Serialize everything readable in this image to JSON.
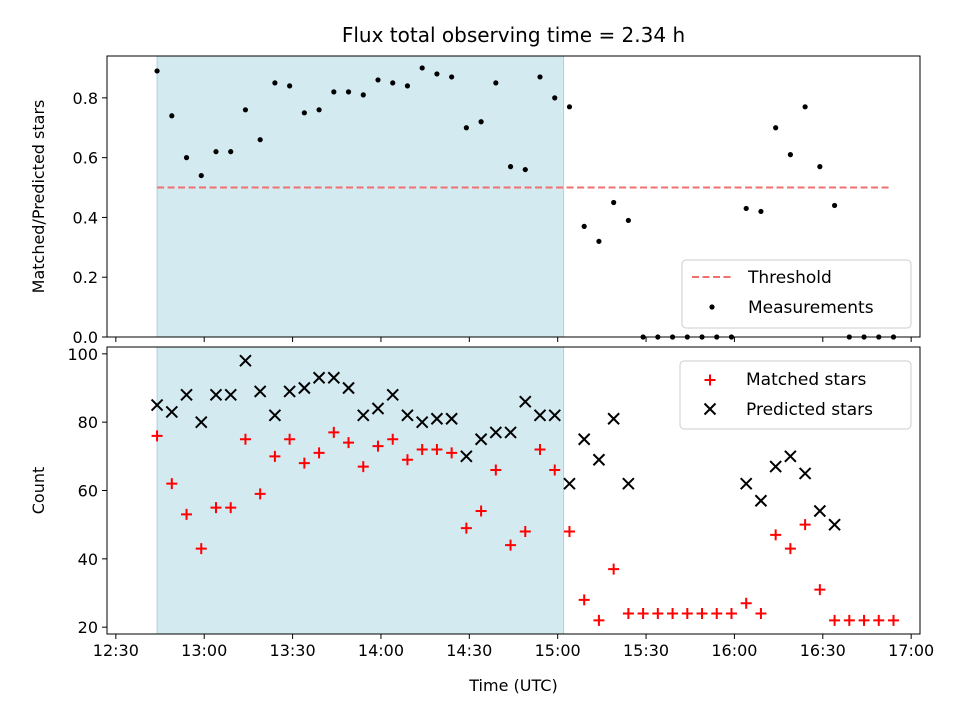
{
  "chart_data": [
    {
      "type": "scatter",
      "title": "Flux total observing time = 2.34 h",
      "xlabel": "",
      "ylabel": "Matched/Predicted stars",
      "xlim": [
        "12:27",
        "17:03"
      ],
      "ylim": [
        0,
        0.94
      ],
      "yticks": [
        0.0,
        0.2,
        0.4,
        0.6,
        0.8
      ],
      "ytick_labels": [
        "0.0",
        "0.2",
        "0.4",
        "0.6",
        "0.8"
      ],
      "grid": false,
      "legend_position": "lower right",
      "shaded_interval": {
        "x_start": "12:44",
        "x_end": "15:02",
        "color": "#d4eaf1"
      },
      "series": [
        {
          "name": "Threshold",
          "kind": "dashed-line",
          "color": "#f07070",
          "x": [
            "12:44",
            "16:53"
          ],
          "y": [
            0.5,
            0.5
          ]
        },
        {
          "name": "Measurements",
          "kind": "points",
          "color": "#000000",
          "x": [
            "12:44",
            "12:49",
            "12:54",
            "12:59",
            "13:04",
            "13:09",
            "13:14",
            "13:19",
            "13:24",
            "13:29",
            "13:34",
            "13:39",
            "13:44",
            "13:49",
            "13:54",
            "13:59",
            "14:04",
            "14:09",
            "14:14",
            "14:19",
            "14:24",
            "14:29",
            "14:34",
            "14:39",
            "14:44",
            "14:49",
            "14:54",
            "14:59",
            "15:04",
            "15:09",
            "15:14",
            "15:19",
            "15:24",
            "15:29",
            "15:34",
            "15:39",
            "15:44",
            "15:49",
            "15:54",
            "15:59",
            "16:04",
            "16:09",
            "16:14",
            "16:19",
            "16:24",
            "16:29",
            "16:34",
            "16:39",
            "16:44",
            "16:49",
            "16:54"
          ],
          "y": [
            0.89,
            0.74,
            0.6,
            0.54,
            0.62,
            0.62,
            0.76,
            0.66,
            0.85,
            0.84,
            0.75,
            0.76,
            0.82,
            0.82,
            0.81,
            0.86,
            0.85,
            0.84,
            0.9,
            0.88,
            0.87,
            0.7,
            0.72,
            0.85,
            0.57,
            0.56,
            0.87,
            0.8,
            0.77,
            0.37,
            0.32,
            0.45,
            0.39,
            0.0,
            0.0,
            0.0,
            0.0,
            0.0,
            0.0,
            0.0,
            0.43,
            0.42,
            0.7,
            0.61,
            0.77,
            0.57,
            0.44,
            0.0,
            0.0,
            0.0,
            0.0
          ]
        }
      ]
    },
    {
      "type": "scatter",
      "title": "",
      "xlabel": "Time (UTC)",
      "ylabel": "Count",
      "xlim": [
        "12:27",
        "17:03"
      ],
      "ylim": [
        18,
        102
      ],
      "xticks": [
        "12:30",
        "13:00",
        "13:30",
        "14:00",
        "14:30",
        "15:00",
        "15:30",
        "16:00",
        "16:30",
        "17:00"
      ],
      "yticks": [
        20,
        40,
        60,
        80,
        100
      ],
      "ytick_labels": [
        "20",
        "40",
        "60",
        "80",
        "100"
      ],
      "grid": false,
      "legend_position": "upper right",
      "shaded_interval": {
        "x_start": "12:44",
        "x_end": "15:02",
        "color": "#d4eaf1"
      },
      "series": [
        {
          "name": "Matched stars",
          "marker": "plus",
          "color": "#ff0000",
          "x": [
            "12:44",
            "12:49",
            "12:54",
            "12:59",
            "13:04",
            "13:09",
            "13:14",
            "13:19",
            "13:24",
            "13:29",
            "13:34",
            "13:39",
            "13:44",
            "13:49",
            "13:54",
            "13:59",
            "14:04",
            "14:09",
            "14:14",
            "14:19",
            "14:24",
            "14:29",
            "14:34",
            "14:39",
            "14:44",
            "14:49",
            "14:54",
            "14:59",
            "15:04",
            "15:09",
            "15:14",
            "15:19",
            "15:24",
            "15:29",
            "15:34",
            "15:39",
            "15:44",
            "15:49",
            "15:54",
            "15:59",
            "16:04",
            "16:09",
            "16:14",
            "16:19",
            "16:24",
            "16:29",
            "16:34",
            "16:39",
            "16:44",
            "16:49",
            "16:54"
          ],
          "y": [
            76,
            62,
            53,
            43,
            55,
            55,
            75,
            59,
            70,
            75,
            68,
            71,
            77,
            74,
            67,
            73,
            75,
            69,
            72,
            72,
            71,
            49,
            54,
            66,
            44,
            48,
            72,
            66,
            48,
            28,
            22,
            37,
            24,
            24,
            24,
            24,
            24,
            24,
            24,
            24,
            27,
            24,
            47,
            43,
            50,
            31,
            22,
            22,
            22,
            22,
            22
          ]
        },
        {
          "name": "Predicted stars",
          "marker": "x",
          "color": "#000000",
          "x": [
            "12:44",
            "12:49",
            "12:54",
            "12:59",
            "13:04",
            "13:09",
            "13:14",
            "13:19",
            "13:24",
            "13:29",
            "13:34",
            "13:39",
            "13:44",
            "13:49",
            "13:54",
            "13:59",
            "14:04",
            "14:09",
            "14:14",
            "14:19",
            "14:24",
            "14:29",
            "14:34",
            "14:39",
            "14:44",
            "14:49",
            "14:54",
            "14:59",
            "15:04",
            "15:09",
            "15:14",
            "15:19",
            "15:24",
            "16:04",
            "16:09",
            "16:14",
            "16:19",
            "16:24",
            "16:29",
            "16:34"
          ],
          "y": [
            85,
            83,
            88,
            80,
            88,
            88,
            98,
            89,
            82,
            89,
            90,
            93,
            93,
            90,
            82,
            84,
            88,
            82,
            80,
            81,
            81,
            70,
            75,
            77,
            77,
            86,
            82,
            82,
            62,
            75,
            69,
            81,
            62,
            62,
            57,
            67,
            70,
            65,
            54,
            50
          ]
        }
      ]
    }
  ]
}
